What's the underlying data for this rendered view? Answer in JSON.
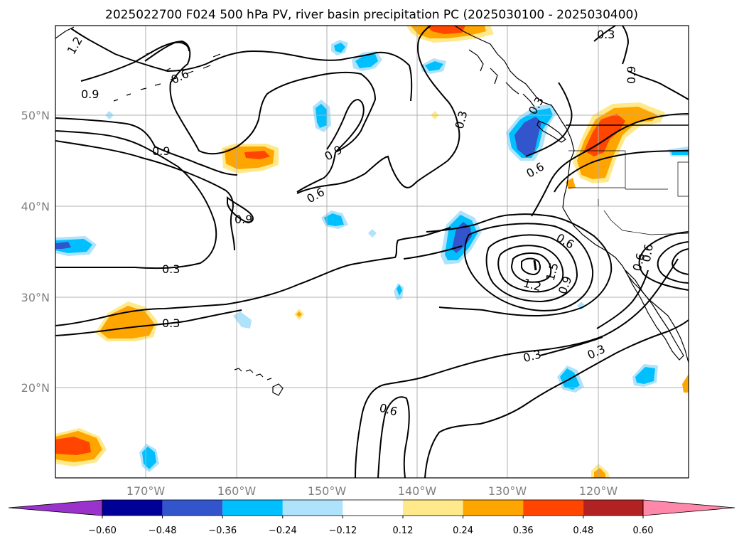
{
  "title": "2025022700 F024 500 hPa PV, river basin precipitation PC (2025030100 - 2025030400)",
  "lat_labels": [
    "50°N",
    "40°N",
    "30°N",
    "20°N"
  ],
  "lon_labels": [
    "170°W",
    "160°W",
    "150°W",
    "140°W",
    "130°W",
    "120°W"
  ],
  "colorbar": {
    "tick_labels": [
      "−0.60",
      "−0.48",
      "−0.36",
      "−0.24",
      "−0.12",
      "0.12",
      "0.24",
      "0.36",
      "0.48",
      "0.60"
    ],
    "colors": [
      "#9933cc",
      "#000099",
      "#3355cc",
      "#00bfff",
      "#aee3fb",
      "#ffffff",
      "#ffe98a",
      "#ffa500",
      "#ff4500",
      "#b22222",
      "#ff88aa"
    ]
  },
  "contour_labels": [
    "1.2",
    "0.6",
    "0.9",
    "0.9",
    "0.9",
    "0.9",
    "0.6",
    "0.3",
    "0.3",
    "0.3",
    "0.6",
    "0.3",
    "0.6",
    "0.9",
    "1.5",
    "1.2",
    "0.6",
    "0.9",
    "0.3",
    "0.3",
    "0.6",
    "0.6",
    "0.3"
  ]
}
